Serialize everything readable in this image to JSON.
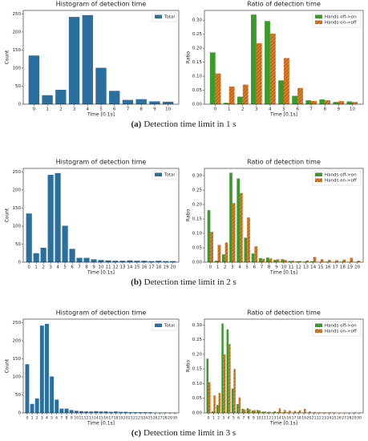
{
  "captions": [
    {
      "label": "(a)",
      "text": "Detection time limit in 1 s"
    },
    {
      "label": "(b)",
      "text": "Detection time limit in 2 s"
    },
    {
      "label": "(c)",
      "text": "Detection time limit in 3 s"
    }
  ],
  "chart_data": [
    {
      "type": "bar",
      "title": "Histogram of detection time",
      "xlabel": "Time [0.1s]",
      "ylabel": "Count",
      "legend": "upper right",
      "categories": [
        "0",
        "1",
        "2",
        "3",
        "4",
        "5",
        "6",
        "7",
        "8",
        "9",
        "10"
      ],
      "series": [
        {
          "name": "Total",
          "color": "#2b6f9f",
          "values": [
            135,
            25,
            40,
            242,
            247,
            101,
            37,
            12,
            14,
            8,
            7
          ]
        }
      ],
      "ylim": [
        0,
        260
      ],
      "yticks": [
        0,
        50,
        100,
        150,
        200,
        250
      ]
    },
    {
      "type": "bar",
      "title": "Ratio of detection time",
      "xlabel": "Time [0.1s]",
      "ylabel": "Ratio",
      "legend": "upper right",
      "categories": [
        "0",
        "1",
        "2",
        "3",
        "4",
        "5",
        "6",
        "7",
        "8",
        "9",
        "10"
      ],
      "series": [
        {
          "name": "Hands off->on",
          "color": "#3a9a2a",
          "values": [
            0.185,
            0.005,
            0.027,
            0.32,
            0.297,
            0.085,
            0.03,
            0.014,
            0.017,
            0.008,
            0.01
          ]
        },
        {
          "name": "Hands on->off",
          "color": "#e07b24",
          "hatch": true,
          "values": [
            0.11,
            0.063,
            0.07,
            0.218,
            0.252,
            0.165,
            0.058,
            0.012,
            0.014,
            0.011,
            0.008
          ]
        }
      ],
      "ylim": [
        0,
        0.335
      ],
      "yticks": [
        {
          "value": 0,
          "label": "0.00"
        },
        {
          "value": 0.05,
          "label": "0.05"
        },
        {
          "value": 0.1,
          "label": "0.10"
        },
        {
          "value": 0.15,
          "label": "0.15"
        },
        {
          "value": 0.2,
          "label": "0.20"
        },
        {
          "value": 0.25,
          "label": "0.25"
        },
        {
          "value": 0.3,
          "label": "0.30"
        }
      ]
    },
    {
      "type": "bar",
      "title": "Histogram of detection time",
      "xlabel": "Time [0.1s]",
      "ylabel": "Count",
      "legend": "upper right",
      "categories": [
        "0",
        "1",
        "2",
        "3",
        "4",
        "5",
        "6",
        "7",
        "8",
        "9",
        "10",
        "11",
        "12",
        "13",
        "14",
        "15",
        "16",
        "17",
        "18",
        "19",
        "20"
      ],
      "series": [
        {
          "name": "Total",
          "color": "#2b6f9f",
          "values": [
            135,
            25,
            40,
            242,
            247,
            101,
            37,
            12,
            12,
            8,
            6,
            5,
            4,
            4,
            5,
            4,
            4,
            3,
            4,
            3,
            3
          ]
        }
      ],
      "ylim": [
        0,
        260
      ],
      "yticks": [
        0,
        50,
        100,
        150,
        200,
        250
      ]
    },
    {
      "type": "bar",
      "title": "Ratio of detection time",
      "xlabel": "Time [0.1s]",
      "ylabel": "Ratio",
      "legend": "upper right",
      "categories": [
        "0",
        "1",
        "2",
        "3",
        "4",
        "5",
        "6",
        "7",
        "8",
        "9",
        "10",
        "11",
        "12",
        "13",
        "14",
        "15",
        "16",
        "17",
        "18",
        "19",
        "20"
      ],
      "series": [
        {
          "name": "Hands off->on",
          "color": "#3a9a2a",
          "values": [
            0.18,
            0.005,
            0.027,
            0.31,
            0.29,
            0.085,
            0.03,
            0.014,
            0.016,
            0.008,
            0.01,
            0.004,
            0.003,
            0.002,
            0.003,
            0.001,
            0.002,
            0.001,
            0.002,
            0.001,
            0.001
          ]
        },
        {
          "name": "Hands on->off",
          "color": "#e07b24",
          "hatch": true,
          "values": [
            0.105,
            0.06,
            0.068,
            0.205,
            0.24,
            0.155,
            0.055,
            0.012,
            0.013,
            0.01,
            0.008,
            0.005,
            0.004,
            0.006,
            0.018,
            0.01,
            0.008,
            0.007,
            0.009,
            0.015,
            0.005
          ]
        }
      ],
      "ylim": [
        0,
        0.325
      ],
      "yticks": [
        {
          "value": 0,
          "label": "0.00"
        },
        {
          "value": 0.05,
          "label": "0.05"
        },
        {
          "value": 0.1,
          "label": "0.10"
        },
        {
          "value": 0.15,
          "label": "0.15"
        },
        {
          "value": 0.2,
          "label": "0.20"
        },
        {
          "value": 0.25,
          "label": "0.25"
        },
        {
          "value": 0.3,
          "label": "0.30"
        }
      ]
    },
    {
      "type": "bar",
      "title": "Histogram of detection time",
      "xlabel": "Time [0.1s]",
      "ylabel": "Count",
      "legend": "upper right",
      "categories": [
        "0",
        "1",
        "2",
        "3",
        "4",
        "5",
        "6",
        "7",
        "8",
        "9",
        "10",
        "11",
        "12",
        "13",
        "14",
        "15",
        "16",
        "17",
        "18",
        "19",
        "20",
        "21",
        "22",
        "23",
        "24",
        "25",
        "26",
        "27",
        "28",
        "29",
        "30"
      ],
      "series": [
        {
          "name": "Total",
          "color": "#2b6f9f",
          "values": [
            135,
            25,
            40,
            242,
            247,
            101,
            37,
            12,
            12,
            8,
            6,
            5,
            4,
            4,
            5,
            4,
            4,
            3,
            4,
            3,
            3,
            2,
            2,
            2,
            2,
            2,
            1,
            1,
            1,
            1,
            1
          ]
        }
      ],
      "ylim": [
        0,
        260
      ],
      "yticks": [
        0,
        50,
        100,
        150,
        200,
        250
      ]
    },
    {
      "type": "bar",
      "title": "Ratio of detection time",
      "xlabel": "Time [0.1s]",
      "ylabel": "Ratio",
      "legend": "upper right",
      "categories": [
        "0",
        "1",
        "2",
        "3",
        "4",
        "5",
        "6",
        "7",
        "8",
        "9",
        "10",
        "11",
        "12",
        "13",
        "14",
        "15",
        "16",
        "17",
        "18",
        "19",
        "20",
        "21",
        "22",
        "23",
        "24",
        "25",
        "26",
        "27",
        "28",
        "29",
        "30"
      ],
      "series": [
        {
          "name": "Hands off->on",
          "color": "#3a9a2a",
          "values": [
            0.185,
            0.005,
            0.027,
            0.305,
            0.285,
            0.083,
            0.03,
            0.014,
            0.016,
            0.008,
            0.01,
            0.004,
            0.003,
            0.002,
            0.003,
            0.002,
            0.002,
            0.001,
            0.002,
            0.001,
            0.001,
            0.001,
            0.001,
            0.001,
            0.001,
            0.001,
            0,
            0,
            0,
            0,
            0
          ]
        },
        {
          "name": "Hands on->off",
          "color": "#e07b24",
          "hatch": true,
          "values": [
            0.105,
            0.06,
            0.068,
            0.2,
            0.235,
            0.15,
            0.053,
            0.012,
            0.013,
            0.01,
            0.008,
            0.005,
            0.004,
            0.006,
            0.016,
            0.01,
            0.008,
            0.007,
            0.009,
            0.014,
            0.005,
            0.003,
            0.002,
            0.002,
            0.002,
            0.002,
            0.001,
            0.001,
            0.001,
            0.002,
            0.001
          ]
        }
      ],
      "ylim": [
        0,
        0.32
      ],
      "yticks": [
        {
          "value": 0,
          "label": "0.00"
        },
        {
          "value": 0.05,
          "label": "0.05"
        },
        {
          "value": 0.1,
          "label": "0.10"
        },
        {
          "value": 0.15,
          "label": "0.15"
        },
        {
          "value": 0.2,
          "label": "0.20"
        },
        {
          "value": 0.25,
          "label": "0.25"
        },
        {
          "value": 0.3,
          "label": "0.30"
        }
      ]
    }
  ]
}
